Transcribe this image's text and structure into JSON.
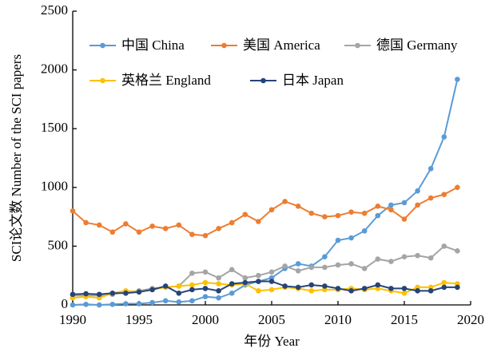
{
  "chart_data": {
    "type": "line",
    "x_label": "年份 Year",
    "y_label": "SCI论文数 Number of the SCI papers",
    "x": [
      1990,
      1991,
      1992,
      1993,
      1994,
      1995,
      1996,
      1997,
      1998,
      1999,
      2000,
      2001,
      2002,
      2003,
      2004,
      2005,
      2006,
      2007,
      2008,
      2009,
      2010,
      2011,
      2012,
      2013,
      2014,
      2015,
      2016,
      2017,
      2018,
      2019
    ],
    "xlim": [
      1990,
      2020
    ],
    "xticks": [
      1990,
      1995,
      2000,
      2005,
      2010,
      2015,
      2020
    ],
    "ylim": [
      0,
      2500
    ],
    "yticks": [
      0,
      500,
      1000,
      1500,
      2000,
      2500
    ],
    "grid": false,
    "series": [
      {
        "name": "中国 China",
        "color": "#5b9bd5",
        "values": [
          0,
          5,
          0,
          5,
          10,
          10,
          20,
          35,
          25,
          35,
          70,
          60,
          100,
          170,
          200,
          230,
          310,
          350,
          330,
          410,
          550,
          570,
          630,
          760,
          850,
          870,
          970,
          1160,
          1430,
          1920
        ]
      },
      {
        "name": "美国 America",
        "color": "#ed7d31",
        "values": [
          800,
          700,
          680,
          620,
          690,
          620,
          670,
          650,
          680,
          600,
          590,
          650,
          700,
          770,
          710,
          810,
          880,
          840,
          780,
          750,
          760,
          790,
          780,
          840,
          810,
          730,
          850,
          910,
          940,
          1000
        ]
      },
      {
        "name": "德国 Germany",
        "color": "#a5a5a5",
        "values": [
          80,
          80,
          80,
          90,
          110,
          120,
          140,
          150,
          160,
          270,
          280,
          230,
          300,
          230,
          250,
          280,
          330,
          290,
          320,
          320,
          340,
          350,
          310,
          390,
          370,
          410,
          420,
          400,
          500,
          460
        ]
      },
      {
        "name": "英格兰 England",
        "color": "#ffc000",
        "values": [
          60,
          70,
          60,
          100,
          120,
          110,
          130,
          150,
          160,
          170,
          190,
          180,
          170,
          180,
          120,
          130,
          150,
          140,
          120,
          130,
          130,
          140,
          130,
          140,
          120,
          100,
          150,
          150,
          190,
          180
        ]
      },
      {
        "name": "日本 Japan",
        "color": "#264478",
        "values": [
          90,
          95,
          90,
          100,
          100,
          110,
          130,
          160,
          100,
          130,
          140,
          120,
          180,
          190,
          200,
          200,
          160,
          150,
          170,
          160,
          140,
          120,
          140,
          170,
          140,
          140,
          120,
          120,
          150,
          150
        ]
      }
    ]
  }
}
